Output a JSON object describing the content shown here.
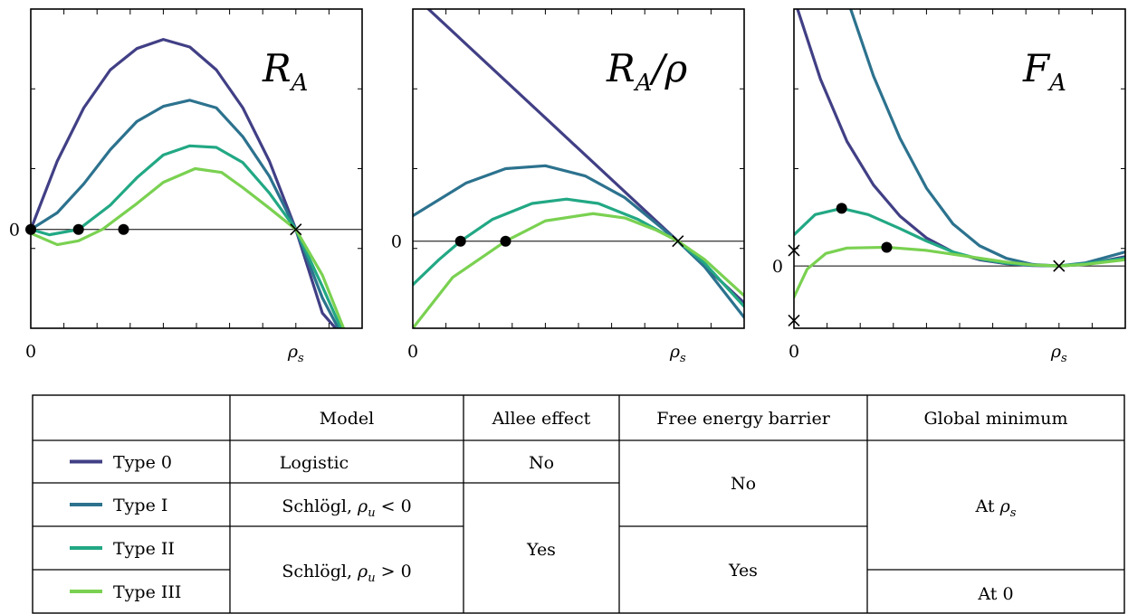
{
  "colors": {
    "type0": "#413f85",
    "type1": "#2c728e",
    "type2": "#22a884",
    "type3": "#7ad151",
    "axis": "#000000"
  },
  "chart_data": [
    {
      "type": "line",
      "title": "R_A",
      "title_main": "R",
      "title_sub": "A",
      "title_tail": "",
      "xlim": [
        0,
        1.25
      ],
      "ylim": [
        -1.3,
        2.9
      ],
      "x_ticks": [
        {
          "value": 0,
          "label": "0"
        },
        {
          "value": 1,
          "label": "ρ_s",
          "main": "ρ",
          "sub": "s"
        }
      ],
      "y_ticks": [
        {
          "value": 0,
          "label": "0"
        }
      ],
      "grid": false,
      "series": [
        {
          "name": "Type 0",
          "color_key": "type0",
          "points": [
            [
              0,
              0
            ],
            [
              0.1,
              0.9
            ],
            [
              0.2,
              1.6
            ],
            [
              0.3,
              2.1
            ],
            [
              0.4,
              2.38
            ],
            [
              0.5,
              2.5
            ],
            [
              0.6,
              2.4
            ],
            [
              0.7,
              2.1
            ],
            [
              0.8,
              1.6
            ],
            [
              0.9,
              0.9
            ],
            [
              1,
              0
            ],
            [
              1.1,
              -1.1
            ],
            [
              1.15,
              -1.3
            ]
          ]
        },
        {
          "name": "Type I",
          "color_key": "type1",
          "points": [
            [
              0,
              0
            ],
            [
              0.1,
              0.22
            ],
            [
              0.2,
              0.6
            ],
            [
              0.3,
              1.05
            ],
            [
              0.4,
              1.42
            ],
            [
              0.5,
              1.62
            ],
            [
              0.6,
              1.7
            ],
            [
              0.7,
              1.6
            ],
            [
              0.8,
              1.22
            ],
            [
              0.9,
              0.7
            ],
            [
              1,
              0
            ],
            [
              1.1,
              -0.9
            ],
            [
              1.16,
              -1.3
            ]
          ]
        },
        {
          "name": "Type II",
          "color_key": "type2",
          "points": [
            [
              0,
              0
            ],
            [
              0.07,
              -0.07
            ],
            [
              0.18,
              0
            ],
            [
              0.3,
              0.32
            ],
            [
              0.4,
              0.68
            ],
            [
              0.5,
              0.98
            ],
            [
              0.6,
              1.1
            ],
            [
              0.7,
              1.08
            ],
            [
              0.8,
              0.88
            ],
            [
              0.9,
              0.48
            ],
            [
              1,
              0
            ],
            [
              1.1,
              -0.75
            ],
            [
              1.17,
              -1.3
            ]
          ]
        },
        {
          "name": "Type III",
          "color_key": "type3",
          "points": [
            [
              0,
              -0.05
            ],
            [
              0.1,
              -0.2
            ],
            [
              0.18,
              -0.15
            ],
            [
              0.27,
              0
            ],
            [
              0.4,
              0.34
            ],
            [
              0.5,
              0.62
            ],
            [
              0.62,
              0.8
            ],
            [
              0.72,
              0.75
            ],
            [
              0.8,
              0.55
            ],
            [
              0.9,
              0.28
            ],
            [
              1,
              0
            ],
            [
              1.1,
              -0.6
            ],
            [
              1.18,
              -1.3
            ]
          ]
        }
      ],
      "markers": [
        {
          "type": "dot",
          "x": 0,
          "y": 0
        },
        {
          "type": "dot",
          "x": 0.18,
          "y": 0
        },
        {
          "type": "dot",
          "x": 0.35,
          "y": 0
        },
        {
          "type": "cross",
          "x": 1,
          "y": 0
        }
      ]
    },
    {
      "type": "line",
      "title": "R_A/ρ",
      "title_main": "R",
      "title_sub": "A",
      "title_tail": "/ρ",
      "xlim": [
        0,
        1.25
      ],
      "ylim": [
        -1.2,
        3.2
      ],
      "x_ticks": [
        {
          "value": 0,
          "label": "0"
        },
        {
          "value": 1,
          "label": "ρ_s",
          "main": "ρ",
          "sub": "s"
        }
      ],
      "y_ticks": [
        {
          "value": 0,
          "label": "0"
        }
      ],
      "grid": false,
      "series": [
        {
          "name": "Type 0",
          "color_key": "type0",
          "points": [
            [
              0,
              3.4
            ],
            [
              0.5,
              1.7
            ],
            [
              1,
              0
            ],
            [
              1.25,
              -0.85
            ]
          ]
        },
        {
          "name": "Type I",
          "color_key": "type1",
          "points": [
            [
              0,
              0.35
            ],
            [
              0.2,
              0.8
            ],
            [
              0.35,
              1
            ],
            [
              0.5,
              1.04
            ],
            [
              0.65,
              0.9
            ],
            [
              0.8,
              0.6
            ],
            [
              0.9,
              0.3
            ],
            [
              1,
              0
            ],
            [
              1.1,
              -0.35
            ],
            [
              1.25,
              -1.05
            ]
          ]
        },
        {
          "name": "Type II",
          "color_key": "type2",
          "points": [
            [
              0,
              -0.6
            ],
            [
              0.1,
              -0.25
            ],
            [
              0.18,
              0
            ],
            [
              0.3,
              0.3
            ],
            [
              0.45,
              0.52
            ],
            [
              0.58,
              0.58
            ],
            [
              0.7,
              0.52
            ],
            [
              0.85,
              0.3
            ],
            [
              1,
              0
            ],
            [
              1.1,
              -0.3
            ],
            [
              1.25,
              -0.9
            ]
          ]
        },
        {
          "name": "Type III",
          "color_key": "type3",
          "points": [
            [
              0,
              -1.2
            ],
            [
              0.15,
              -0.5
            ],
            [
              0.35,
              0
            ],
            [
              0.5,
              0.28
            ],
            [
              0.68,
              0.38
            ],
            [
              0.8,
              0.32
            ],
            [
              0.92,
              0.15
            ],
            [
              1,
              0
            ],
            [
              1.1,
              -0.25
            ],
            [
              1.25,
              -0.75
            ]
          ]
        }
      ],
      "markers": [
        {
          "type": "dot",
          "x": 0.18,
          "y": 0
        },
        {
          "type": "dot",
          "x": 0.35,
          "y": 0
        },
        {
          "type": "cross",
          "x": 1,
          "y": 0
        }
      ]
    },
    {
      "type": "line",
      "title": "F_A",
      "title_main": "F",
      "title_sub": "A",
      "title_tail": "",
      "xlim": [
        0,
        1.25
      ],
      "ylim": [
        -0.4,
        1.65
      ],
      "x_ticks": [
        {
          "value": 0,
          "label": "0"
        },
        {
          "value": 1,
          "label": "ρ_s",
          "main": "ρ",
          "sub": "s"
        }
      ],
      "y_ticks": [
        {
          "value": 0,
          "label": "0"
        }
      ],
      "grid": false,
      "series": [
        {
          "name": "Type 0",
          "color_key": "type0",
          "points": [
            [
              0,
              1.72
            ],
            [
              0.1,
              1.2
            ],
            [
              0.2,
              0.8
            ],
            [
              0.3,
              0.52
            ],
            [
              0.4,
              0.32
            ],
            [
              0.5,
              0.18
            ],
            [
              0.6,
              0.09
            ],
            [
              0.7,
              0.04
            ],
            [
              0.8,
              0.015
            ],
            [
              0.9,
              0.003
            ],
            [
              1,
              0
            ],
            [
              1.1,
              0.01
            ],
            [
              1.25,
              0.06
            ]
          ]
        },
        {
          "name": "Type I",
          "color_key": "type1",
          "points": [
            [
              0.2,
              1.72
            ],
            [
              0.3,
              1.22
            ],
            [
              0.4,
              0.82
            ],
            [
              0.5,
              0.5
            ],
            [
              0.6,
              0.27
            ],
            [
              0.7,
              0.13
            ],
            [
              0.8,
              0.05
            ],
            [
              0.9,
              0.01
            ],
            [
              1,
              0
            ],
            [
              1.1,
              0.02
            ],
            [
              1.25,
              0.09
            ]
          ]
        },
        {
          "name": "Type II",
          "color_key": "type2",
          "points": [
            [
              0,
              0.2
            ],
            [
              0.08,
              0.33
            ],
            [
              0.18,
              0.37
            ],
            [
              0.28,
              0.33
            ],
            [
              0.4,
              0.24
            ],
            [
              0.5,
              0.16
            ],
            [
              0.6,
              0.09
            ],
            [
              0.7,
              0.045
            ],
            [
              0.8,
              0.018
            ],
            [
              0.9,
              0.005
            ],
            [
              1,
              0
            ],
            [
              1.1,
              0.015
            ],
            [
              1.25,
              0.05
            ]
          ]
        },
        {
          "name": "Type III",
          "color_key": "type3",
          "points": [
            [
              0,
              -0.2
            ],
            [
              0.05,
              -0.02
            ],
            [
              0.12,
              0.08
            ],
            [
              0.2,
              0.115
            ],
            [
              0.35,
              0.12
            ],
            [
              0.5,
              0.1
            ],
            [
              0.6,
              0.075
            ],
            [
              0.7,
              0.05
            ],
            [
              0.8,
              0.025
            ],
            [
              0.9,
              0.007
            ],
            [
              1,
              0
            ],
            [
              1.1,
              0.01
            ],
            [
              1.25,
              0.04
            ]
          ]
        }
      ],
      "markers": [
        {
          "type": "dot",
          "x": 0.18,
          "y": 0.37
        },
        {
          "type": "dot",
          "x": 0.35,
          "y": 0.12
        },
        {
          "type": "cross",
          "x": 1,
          "y": 0
        },
        {
          "type": "cross",
          "x": 0,
          "y": 0.1
        },
        {
          "type": "cross",
          "x": 0,
          "y": -0.35
        }
      ]
    }
  ],
  "table": {
    "headers": [
      "",
      "Model",
      "Allee effect",
      "Free energy barrier",
      "Global minimum"
    ],
    "types": [
      {
        "label": "Type 0",
        "color_key": "type0"
      },
      {
        "label": "Type I",
        "color_key": "type1"
      },
      {
        "label": "Type II",
        "color_key": "type2"
      },
      {
        "label": "Type III",
        "color_key": "type3"
      }
    ],
    "model": {
      "logistic": "Logistic",
      "schlogl_neg": {
        "prefix": "Schlögl, ",
        "var": "ρ",
        "sub": "u",
        "rel": " < 0"
      },
      "schlogl_pos": {
        "prefix": "Schlögl, ",
        "var": "ρ",
        "sub": "u",
        "rel": " > 0"
      }
    },
    "allee": {
      "no": "No",
      "yes": "Yes"
    },
    "barrier": {
      "no": "No",
      "yes": "Yes"
    },
    "global_min": {
      "at_rho_s": {
        "prefix": "At ",
        "var": "ρ",
        "sub": "s"
      },
      "at_zero": "At 0"
    }
  }
}
